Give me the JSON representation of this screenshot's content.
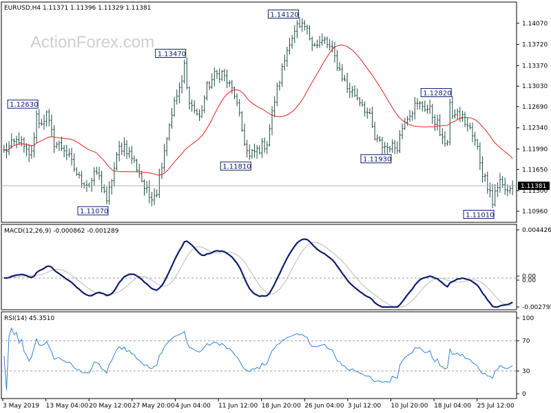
{
  "chart_data": {
    "type": "candlestick",
    "symbol_header": "EURUSD,H4  1.11371 1.11396 1.11329 1.11381",
    "watermark": "ActionForex.com",
    "x_labels": [
      "3 May 2019",
      "13 May 04:00",
      "20 May 12:00",
      "27 May 20:00",
      "4 Jun 04:00",
      "11 Jun 12:00",
      "18 Jun 20:00",
      "26 Jun 04:00",
      "3 Jul 12:00",
      "10 Jul 20:00",
      "18 Jul 04:00",
      "25 Jul 12:00"
    ],
    "price": {
      "ylim": [
        1.1081,
        1.1425
      ],
      "y_ticks": [
        "1.10960",
        "1.11300",
        "1.11650",
        "1.11990",
        "1.12340",
        "1.12690",
        "1.13030",
        "1.13370",
        "1.13720",
        "1.14070"
      ],
      "y_tick_values": [
        1.1096,
        1.113,
        1.1165,
        1.1199,
        1.1234,
        1.1269,
        1.1303,
        1.1337,
        1.1372,
        1.1407
      ],
      "current_price_label": "1.11381",
      "current_price": 1.11381,
      "ma_color": "#e02020",
      "bar_color": "#1a4a40",
      "path_knots": [
        [
          0,
          1.1195
        ],
        [
          6,
          1.1215
        ],
        [
          10,
          1.1185
        ],
        [
          14,
          1.124
        ],
        [
          17,
          1.1255
        ],
        [
          20,
          1.121
        ],
        [
          24,
          1.12
        ],
        [
          27,
          1.1175
        ],
        [
          30,
          1.115
        ],
        [
          34,
          1.114
        ],
        [
          37,
          1.116
        ],
        [
          40,
          1.113
        ],
        [
          41,
          1.111
        ],
        [
          43,
          1.115
        ],
        [
          46,
          1.12
        ],
        [
          48,
          1.1205
        ],
        [
          51,
          1.1185
        ],
        [
          54,
          1.116
        ],
        [
          56,
          1.1135
        ],
        [
          58,
          1.112
        ],
        [
          61,
          1.113
        ],
        [
          64,
          1.12
        ],
        [
          67,
          1.126
        ],
        [
          70,
          1.13
        ],
        [
          72,
          1.131
        ],
        [
          75,
          1.127
        ],
        [
          78,
          1.125
        ],
        [
          81,
          1.13
        ],
        [
          84,
          1.132
        ],
        [
          87,
          1.1325
        ],
        [
          89,
          1.131
        ],
        [
          92,
          1.129
        ],
        [
          95,
          1.123
        ],
        [
          97,
          1.1195
        ],
        [
          99,
          1.119
        ],
        [
          102,
          1.12
        ],
        [
          105,
          1.121
        ],
        [
          108,
          1.128
        ],
        [
          111,
          1.133
        ],
        [
          114,
          1.138
        ],
        [
          117,
          1.1395
        ],
        [
          120,
          1.14
        ],
        [
          122,
          1.1385
        ],
        [
          125,
          1.137
        ],
        [
          128,
          1.1378
        ],
        [
          131,
          1.136
        ],
        [
          134,
          1.133
        ],
        [
          137,
          1.13
        ],
        [
          140,
          1.129
        ],
        [
          143,
          1.1275
        ],
        [
          146,
          1.125
        ],
        [
          148,
          1.1215
        ],
        [
          151,
          1.1205
        ],
        [
          154,
          1.12
        ],
        [
          157,
          1.1205
        ],
        [
          160,
          1.125
        ],
        [
          164,
          1.127
        ],
        [
          167,
          1.1272
        ],
        [
          170,
          1.1262
        ],
        [
          173,
          1.124
        ],
        [
          175,
          1.121
        ],
        [
          177,
          1.1215
        ],
        [
          180,
          1.126
        ],
        [
          183,
          1.125
        ],
        [
          186,
          1.123
        ],
        [
          189,
          1.12
        ],
        [
          191,
          1.116
        ],
        [
          193,
          1.114
        ],
        [
          196,
          1.113
        ],
        [
          198,
          1.1145
        ],
        [
          200,
          1.113
        ],
        [
          203,
          1.1138
        ]
      ],
      "bars_count": 204,
      "labels": [
        {
          "text": "1.12630",
          "bar": 13,
          "value": 1.1263,
          "pos": "above"
        },
        {
          "text": "1.11070",
          "bar": 41,
          "value": 1.1107,
          "pos": "below"
        },
        {
          "text": "1.13470",
          "bar": 72,
          "value": 1.1347,
          "pos": "above"
        },
        {
          "text": "1.11810",
          "bar": 98,
          "value": 1.1181,
          "pos": "below"
        },
        {
          "text": "1.14120",
          "bar": 117,
          "value": 1.1412,
          "pos": "above"
        },
        {
          "text": "1.11930",
          "bar": 154,
          "value": 1.1193,
          "pos": "below"
        },
        {
          "text": "1.12820",
          "bar": 178,
          "value": 1.1282,
          "pos": "above"
        },
        {
          "text": "1.11010",
          "bar": 195,
          "value": 1.1101,
          "pos": "below"
        }
      ]
    },
    "macd": {
      "header": "MACD(12,26,9) -0.000862 -0.001289",
      "ylim": [
        -0.0032,
        0.0048
      ],
      "y_ticks": [
        "0.004426",
        "0.00",
        "0.00",
        "-0.002795"
      ],
      "y_tick_values": [
        0.004426,
        0.0003,
        -0.0003,
        -0.002795
      ],
      "main_color": "#0b1b6e",
      "signal_color": "#b8b8b8"
    },
    "rsi": {
      "header": "RSI(14) 45.3510",
      "ylim": [
        0,
        100
      ],
      "y_ticks": [
        "100",
        "70",
        "30",
        "0"
      ],
      "y_tick_values": [
        100,
        70,
        30,
        0
      ],
      "levels": [
        70,
        30
      ],
      "line_color": "#2f7fd6"
    }
  }
}
